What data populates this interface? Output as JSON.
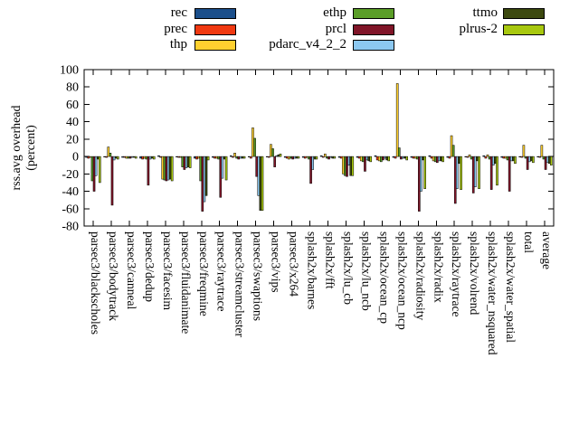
{
  "chart_data": {
    "type": "bar",
    "title": "",
    "ylabel_lines": [
      "rss.avg overhead",
      "(percent)"
    ],
    "ylim": [
      -80,
      100
    ],
    "ytick_step": 20,
    "grid": false,
    "legend_position": "top",
    "bar_outline_color": "#000000",
    "categories": [
      "parsec3/blackscholes",
      "parsec3/bodytrack",
      "parsec3/canneal",
      "parsec3/dedup",
      "parsec3/facesim",
      "parsec3/fluidanimate",
      "parsec3/freqmine",
      "parsec3/raytrace",
      "parsec3/streamcluster",
      "parsec3/swaptions",
      "parsec3/vips",
      "parsec3/x264",
      "splash2x/barnes",
      "splash2x/fft",
      "splash2x/lu_cb",
      "splash2x/lu_ncb",
      "splash2x/ocean_cp",
      "splash2x/ocean_ncp",
      "splash2x/radiosity",
      "splash2x/radix",
      "splash2x/raytrace",
      "splash2x/volrend",
      "splash2x/water_nsquared",
      "splash2x/water_spatial",
      "total",
      "average"
    ],
    "series": [
      {
        "name": "rec",
        "color": "#1b4f8b",
        "values": [
          -1,
          0,
          -1,
          -2,
          1,
          0,
          -2,
          -1,
          1,
          0,
          0,
          -1,
          -1,
          1,
          -1,
          -1,
          1,
          -1,
          -1,
          1,
          -1,
          0,
          1,
          -1,
          0,
          0
        ]
      },
      {
        "name": "prec",
        "color": "#f03911",
        "values": [
          -2,
          -1,
          -1,
          -3,
          -1,
          -1,
          -3,
          -2,
          -1,
          -2,
          -1,
          -2,
          -2,
          -1,
          -2,
          -2,
          -4,
          -2,
          -2,
          -2,
          -2,
          -1,
          -2,
          -2,
          -1,
          -1
        ]
      },
      {
        "name": "thp",
        "color": "#ffd02f",
        "values": [
          -1,
          11,
          -2,
          -2,
          -26,
          -1,
          -2,
          -2,
          4,
          33,
          14,
          -3,
          -1,
          3,
          -20,
          -5,
          -5,
          84,
          -2,
          -5,
          24,
          2,
          2,
          -2,
          13,
          13
        ]
      },
      {
        "name": "ethp",
        "color": "#5b9e28",
        "values": [
          -28,
          4,
          -2,
          -3,
          -27,
          -12,
          -28,
          -3,
          -2,
          21,
          9,
          -2,
          -3,
          -2,
          -22,
          -6,
          -6,
          10,
          -3,
          -6,
          13,
          -3,
          -3,
          -4,
          -2,
          -3
        ]
      },
      {
        "name": "prcl",
        "color": "#801528",
        "values": [
          -40,
          -56,
          -2,
          -33,
          -28,
          -15,
          -63,
          -47,
          -3,
          -23,
          -12,
          -3,
          -31,
          -3,
          -23,
          -17,
          -4,
          -3,
          -63,
          -7,
          -54,
          -42,
          -38,
          -40,
          -15,
          -15
        ]
      },
      {
        "name": "pdarc_v4_2_2",
        "color": "#8cc8f0",
        "values": [
          -22,
          -4,
          -1,
          -3,
          -27,
          -13,
          -52,
          -25,
          -2,
          -45,
          1,
          -2,
          -15,
          -1,
          -10,
          -4,
          -2,
          -2,
          -40,
          -5,
          -37,
          -35,
          -10,
          -5,
          -6,
          -7
        ]
      },
      {
        "name": "ttmo",
        "color": "#3c490f",
        "values": [
          -3,
          -2,
          -1,
          -2,
          -26,
          -12,
          -45,
          -3,
          -2,
          -62,
          2,
          -2,
          -3,
          -2,
          -22,
          -5,
          -4,
          -2,
          -4,
          -5,
          -8,
          -5,
          -8,
          -5,
          -5,
          -8
        ]
      },
      {
        "name": "plrus-2",
        "color": "#a8c80f",
        "values": [
          -30,
          -3,
          -2,
          -3,
          -28,
          -13,
          -4,
          -27,
          -2,
          -62,
          3,
          -2,
          -3,
          -2,
          -22,
          -6,
          -5,
          -4,
          -37,
          -6,
          -38,
          -37,
          -33,
          -8,
          -7,
          -10
        ]
      }
    ]
  }
}
